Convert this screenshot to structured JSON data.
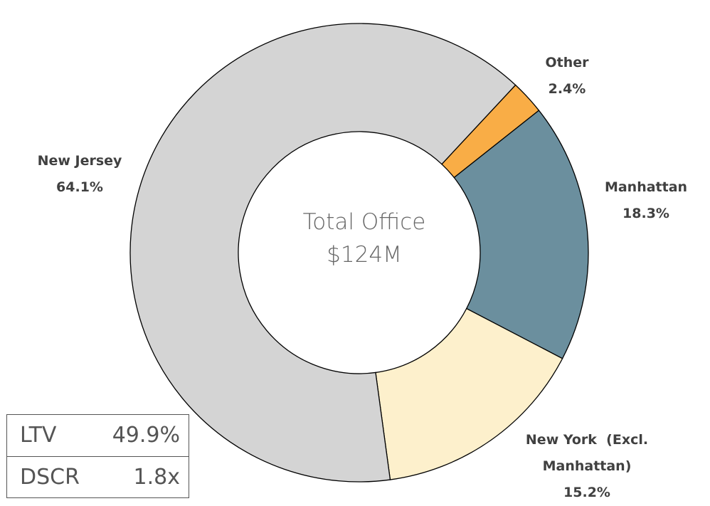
{
  "chart_data": {
    "type": "donut",
    "categories": [
      "Other",
      "Manhattan",
      "New York  (Excl. Manhattan)",
      "New Jersey"
    ],
    "values": [
      2.4,
      18.3,
      15.2,
      64.1
    ],
    "value_labels": [
      "2.4%",
      "18.3%",
      "15.2%",
      "64.1%"
    ],
    "colors": [
      "#f9ad46",
      "#6b8f9e",
      "#fdf0cc",
      "#d4d4d4"
    ],
    "center_text": [
      "Total Office",
      "$124M"
    ]
  },
  "table": {
    "rows": [
      [
        "LTV",
        "49.9%"
      ],
      [
        "DSCR",
        "1.8x"
      ]
    ]
  }
}
